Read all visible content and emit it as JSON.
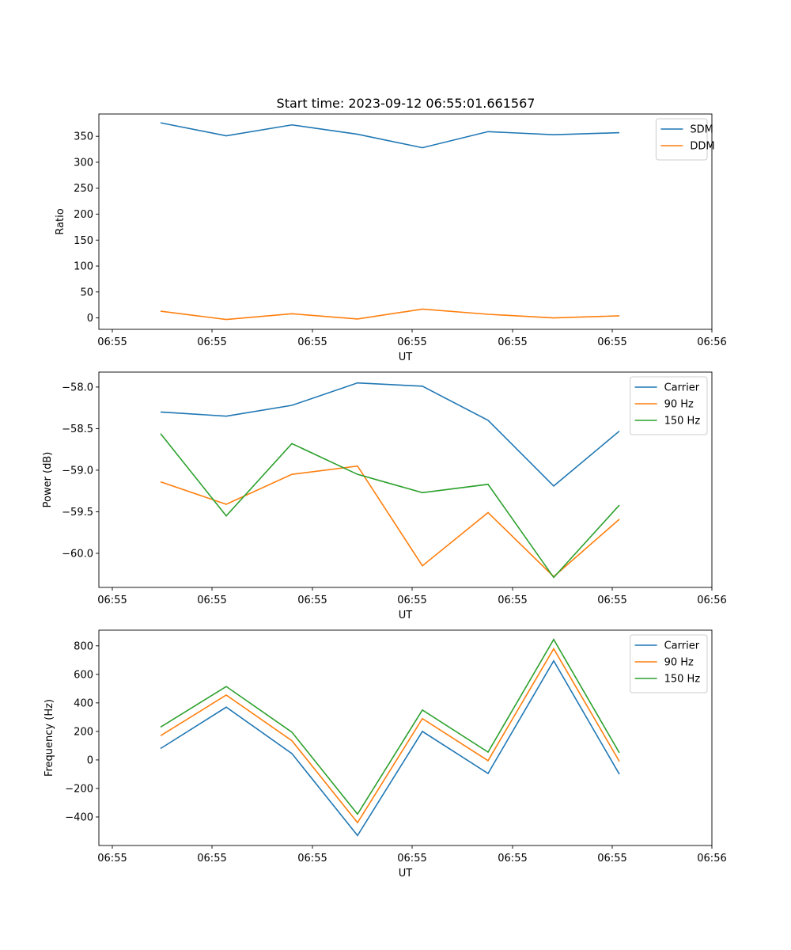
{
  "figure_title": "Start time: 2023-09-12 06:55:01.661567",
  "colors": {
    "blue": "#1f77b4",
    "orange": "#ff7f0e",
    "green": "#2ca02c"
  },
  "chart_data": [
    {
      "type": "line",
      "xlabel": "UT",
      "ylabel": "Ratio",
      "xticks": [
        "06:55",
        "06:55",
        "06:55",
        "06:55",
        "06:55",
        "06:55",
        "06:55"
      ],
      "xtick_last": "06:56",
      "yticks": [
        0,
        50,
        100,
        150,
        200,
        250,
        300,
        350
      ],
      "ylim": [
        -22,
        393
      ],
      "legend_location": "upper right",
      "series": [
        {
          "name": "SDM",
          "color": "#1f77b4",
          "values": [
            376,
            351,
            372,
            354,
            328,
            359,
            353,
            357
          ]
        },
        {
          "name": "DDM",
          "color": "#ff7f0e",
          "values": [
            13,
            -3,
            8,
            -2,
            17,
            7,
            0,
            4
          ]
        }
      ]
    },
    {
      "type": "line",
      "xlabel": "UT",
      "ylabel": "Power (dB)",
      "xticks": [
        "06:55",
        "06:55",
        "06:55",
        "06:55",
        "06:55",
        "06:55",
        "06:55"
      ],
      "xtick_last": "06:56",
      "yticks": [
        -60.0,
        -59.5,
        -59.0,
        -58.5,
        -58.0
      ],
      "ylim": [
        -60.41,
        -57.82
      ],
      "legend_location": "upper right",
      "series": [
        {
          "name": "Carrier",
          "color": "#1f77b4",
          "values": [
            -58.3,
            -58.35,
            -58.22,
            -57.95,
            -57.99,
            -58.4,
            -59.19,
            -58.53
          ]
        },
        {
          "name": "90 Hz",
          "color": "#ff7f0e",
          "values": [
            -59.14,
            -59.41,
            -59.05,
            -58.95,
            -60.15,
            -59.51,
            -60.28,
            -59.59
          ]
        },
        {
          "name": "150 Hz",
          "color": "#2ca02c",
          "values": [
            -58.56,
            -59.55,
            -58.68,
            -59.05,
            -59.27,
            -59.17,
            -60.29,
            -59.42
          ]
        }
      ]
    },
    {
      "type": "line",
      "xlabel": "UT",
      "ylabel": "Frequency (Hz)",
      "xticks": [
        "06:55",
        "06:55",
        "06:55",
        "06:55",
        "06:55",
        "06:55",
        "06:55"
      ],
      "xtick_last": "06:56",
      "yticks": [
        -400,
        -200,
        0,
        200,
        400,
        600,
        800
      ],
      "ylim": [
        -600,
        910
      ],
      "legend_location": "upper right",
      "series": [
        {
          "name": "Carrier",
          "color": "#1f77b4",
          "values": [
            80,
            370,
            45,
            -530,
            200,
            -95,
            695,
            -100
          ]
        },
        {
          "name": "90 Hz",
          "color": "#ff7f0e",
          "values": [
            170,
            455,
            135,
            -440,
            290,
            -5,
            780,
            -10
          ]
        },
        {
          "name": "150 Hz",
          "color": "#2ca02c",
          "values": [
            230,
            515,
            195,
            -380,
            350,
            55,
            845,
            50
          ]
        }
      ]
    }
  ]
}
